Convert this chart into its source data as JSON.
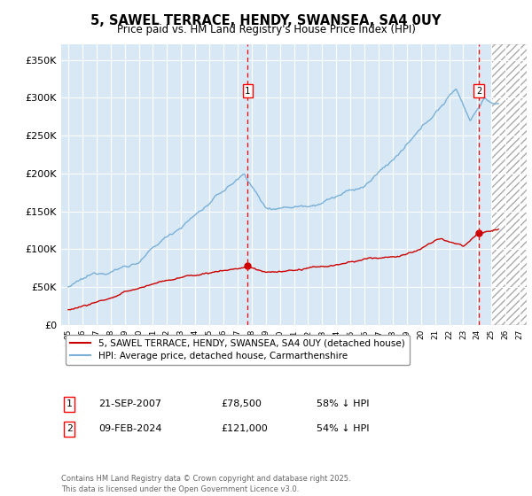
{
  "title": "5, SAWEL TERRACE, HENDY, SWANSEA, SA4 0UY",
  "subtitle": "Price paid vs. HM Land Registry's House Price Index (HPI)",
  "ylim": [
    0,
    370000
  ],
  "yticks": [
    0,
    50000,
    100000,
    150000,
    200000,
    250000,
    300000,
    350000
  ],
  "ytick_labels": [
    "£0",
    "£50K",
    "£100K",
    "£150K",
    "£200K",
    "£250K",
    "£300K",
    "£350K"
  ],
  "xlim_start": 1994.5,
  "xlim_end": 2027.5,
  "plot_bg": "#d8e8f5",
  "hatch_start": 2025.0,
  "t1_x": 2007.72,
  "t1_price": 78500,
  "t2_x": 2024.1,
  "t2_price": 121000,
  "red_color": "#cc0000",
  "blue_color": "#7ab0d8",
  "legend_label_red": "5, SAWEL TERRACE, HENDY, SWANSEA, SA4 0UY (detached house)",
  "legend_label_blue": "HPI: Average price, detached house, Carmarthenshire",
  "ann1_date": "21-SEP-2007",
  "ann1_price": "£78,500",
  "ann1_hpi": "58% ↓ HPI",
  "ann2_date": "09-FEB-2024",
  "ann2_price": "£121,000",
  "ann2_hpi": "54% ↓ HPI",
  "footer": "Contains HM Land Registry data © Crown copyright and database right 2025.\nThis data is licensed under the Open Government Licence v3.0."
}
